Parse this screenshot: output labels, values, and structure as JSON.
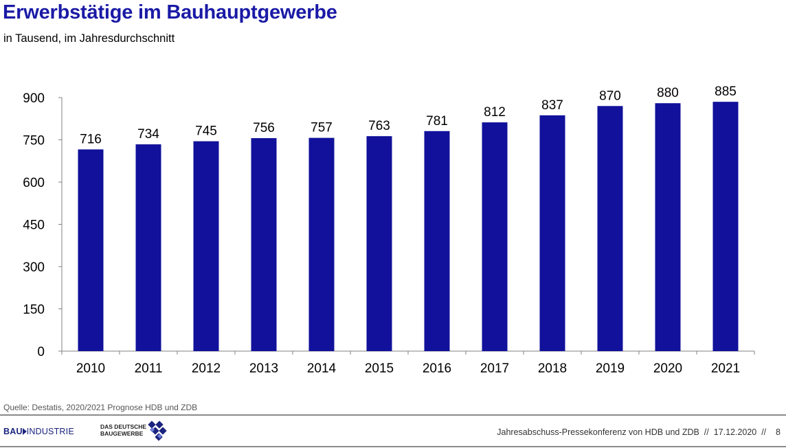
{
  "title": "Erwerbstätige im Bauhauptgewerbe",
  "subtitle": "in Tausend, im Jahresdurchschnitt",
  "chart_data": {
    "type": "bar",
    "categories": [
      "2010",
      "2011",
      "2012",
      "2013",
      "2014",
      "2015",
      "2016",
      "2017",
      "2018",
      "2019",
      "2020",
      "2021"
    ],
    "values": [
      716,
      734,
      745,
      756,
      757,
      763,
      781,
      812,
      837,
      870,
      880,
      885
    ],
    "ylim": [
      0,
      900
    ],
    "yticks": [
      0,
      150,
      300,
      450,
      600,
      750,
      900
    ],
    "ytick_labels": [
      "0",
      "150",
      "300",
      "450",
      "600",
      "750",
      "900"
    ],
    "grid": false,
    "legend": "none",
    "bar_color": "#11119b"
  },
  "source": "Quelle: Destatis, 2020/2021 Prognose HDB und ZDB",
  "footer": {
    "logo_bau_bold": "BAU",
    "logo_bau_rest": "INDUSTRIE",
    "logo_zdb_line1": "DAS DEUTSCHE",
    "logo_zdb_line2": "BAUGEWERBE",
    "event_text": "Jahresabschuss-Pressekonferenz von HDB und ZDB  //  17.12.2020  //    8"
  },
  "colors": {
    "title": "#1a1aa6",
    "bars": "#11119b",
    "rule": "#8a8a8a"
  }
}
